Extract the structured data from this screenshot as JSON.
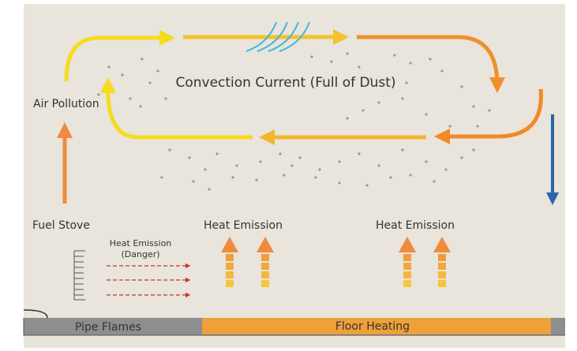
{
  "labels": {
    "air_pollution": "Air Pollution",
    "convection": "Convection Current (Full of Dust)",
    "fuel_stove": "Fuel Stove",
    "heat_emission_1": "Heat Emission",
    "heat_emission_2": "Heat Emission",
    "danger_title": "Heat Emission",
    "danger_note": "(Danger)",
    "pipe_flames": "Pipe Flames",
    "floor_heating": "Floor Heating"
  }
}
